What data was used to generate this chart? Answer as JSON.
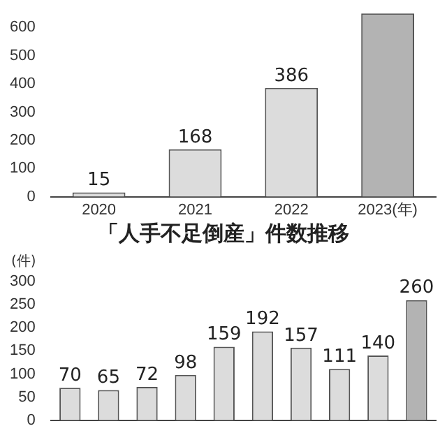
{
  "chart_data": [
    {
      "type": "bar",
      "categories": [
        "2020",
        "2021",
        "2022",
        "2023(年)"
      ],
      "values": [
        15,
        168,
        386,
        650
      ],
      "colors": [
        "#dcdcdc",
        "#dcdcdc",
        "#dcdcdc",
        "#b3b3b3"
      ],
      "ylim": [
        0,
        650
      ],
      "yticks": [
        0,
        100,
        200,
        300,
        400,
        500,
        600
      ],
      "value_labels": [
        "15",
        "168",
        "386",
        null
      ],
      "grid": false,
      "legend": false
    },
    {
      "type": "bar",
      "title": "「人手不足倒産」件数推移",
      "ylabel": "(件)",
      "categories": [
        null,
        null,
        null,
        null,
        null,
        null,
        null,
        null,
        null,
        null
      ],
      "values": [
        70,
        65,
        72,
        98,
        159,
        192,
        157,
        111,
        140,
        260
      ],
      "colors": [
        "#dcdcdc",
        "#dcdcdc",
        "#dcdcdc",
        "#dcdcdc",
        "#dcdcdc",
        "#dcdcdc",
        "#dcdcdc",
        "#dcdcdc",
        "#dcdcdc",
        "#b3b3b3"
      ],
      "ylim": [
        0,
        300
      ],
      "yticks": [
        0,
        50,
        100,
        150,
        200,
        250,
        300
      ],
      "data_labels": true,
      "grid": false,
      "legend": false
    }
  ]
}
